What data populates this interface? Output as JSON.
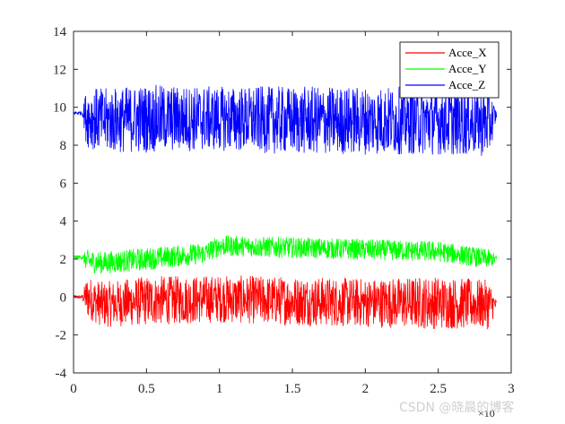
{
  "chart_data": {
    "type": "line",
    "title": "",
    "xlabel": "",
    "ylabel": "",
    "xlim": [
      0,
      3
    ],
    "ylim": [
      -4,
      14
    ],
    "x_exponent_label": "×10",
    "x_ticks": [
      "0",
      "0.5",
      "1",
      "1.5",
      "2",
      "2.5",
      "3"
    ],
    "y_ticks": [
      "-4",
      "-2",
      "0",
      "2",
      "4",
      "6",
      "8",
      "10",
      "12",
      "14"
    ],
    "grid": false,
    "legend_position": "top-right",
    "series": [
      {
        "name": "Acce_X",
        "color": "#ff0000",
        "x": [
          0.0,
          0.06,
          0.09,
          0.2,
          0.5,
          1.0,
          1.5,
          2.0,
          2.5,
          2.85,
          2.9
        ],
        "y": [
          0.0,
          0.0,
          0.0,
          -0.4,
          -0.2,
          -0.1,
          -0.2,
          -0.3,
          -0.3,
          -0.4,
          -0.4
        ],
        "noise_amplitude": [
          0.1,
          0.1,
          1.1,
          1.2,
          1.3,
          1.25,
          1.3,
          1.3,
          1.4,
          1.3,
          0.2
        ]
      },
      {
        "name": "Acce_Y",
        "color": "#00ff00",
        "x": [
          0.0,
          0.06,
          0.09,
          0.2,
          0.5,
          0.9,
          1.0,
          1.5,
          2.0,
          2.5,
          2.85,
          2.9
        ],
        "y": [
          2.1,
          2.1,
          1.9,
          1.8,
          2.0,
          2.3,
          2.7,
          2.6,
          2.5,
          2.4,
          2.0,
          2.0
        ],
        "noise_amplitude": [
          0.1,
          0.1,
          0.6,
          0.6,
          0.6,
          0.55,
          0.55,
          0.55,
          0.55,
          0.55,
          0.5,
          0.2
        ]
      },
      {
        "name": "Acce_Z",
        "color": "#0000ff",
        "x": [
          0.0,
          0.06,
          0.09,
          0.2,
          0.5,
          1.0,
          1.5,
          2.0,
          2.5,
          2.85,
          2.9
        ],
        "y": [
          9.7,
          9.7,
          9.5,
          9.3,
          9.4,
          9.4,
          9.3,
          9.3,
          9.3,
          9.2,
          9.6
        ],
        "noise_amplitude": [
          0.1,
          0.1,
          1.6,
          1.7,
          1.8,
          1.7,
          1.8,
          1.8,
          1.8,
          1.8,
          0.2
        ]
      }
    ]
  },
  "watermark": "CSDN @晓晨的博客"
}
